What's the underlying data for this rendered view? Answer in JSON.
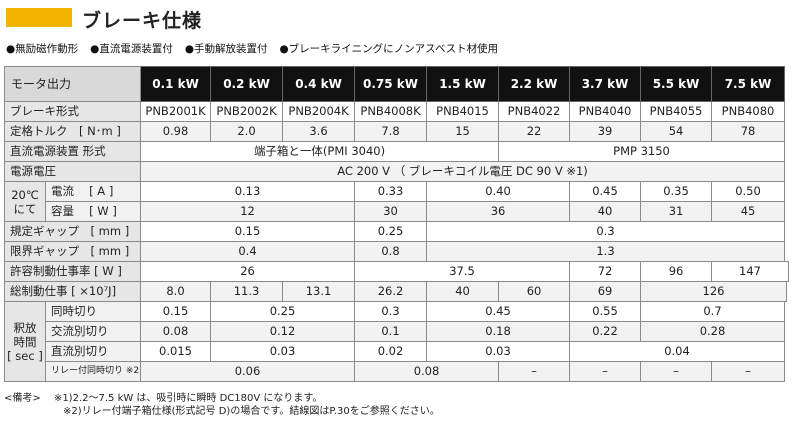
{
  "header": {
    "title": "ブレーキ仕様",
    "accent_color": "#f3b400"
  },
  "features": [
    "●無励磁作動形",
    "●直流電源装置付",
    "●手動解放装置付",
    "●ブレーキライニングにノンアスベスト材使用"
  ],
  "table": {
    "corner_label": "モータ出力",
    "columns": [
      "0.1 kW",
      "0.2 kW",
      "0.4 kW",
      "0.75 kW",
      "1.5 kW",
      "2.2 kW",
      "3.7 kW",
      "5.5 kW",
      "7.5 kW"
    ],
    "brake_type": {
      "label": "ブレーキ形式",
      "values": [
        "PNB2001K",
        "PNB2002K",
        "PNB2004K",
        "PNB4008K",
        "PNB4015",
        "PNB4022",
        "PNB4040",
        "PNB4055",
        "PNB4080"
      ]
    },
    "torque": {
      "label": "定格トルク　[ N･m ]",
      "values": [
        "0.98",
        "2.0",
        "3.6",
        "7.8",
        "15",
        "22",
        "39",
        "54",
        "78"
      ]
    },
    "dc_power": {
      "label": "直流電源装置 形式",
      "v1": "端子箱と一体(PMI 3040)",
      "v2": "PMP 3150"
    },
    "voltage": {
      "label": "電源電圧",
      "value": "AC 200 V （ ブレーキコイル電圧 DC 90 V ※1)"
    },
    "at20": {
      "group_label_1": "20℃",
      "group_label_2": "にて",
      "current": {
        "label": "電流　 [ A ]",
        "v1": "0.13",
        "v2": "0.33",
        "v3": "0.40",
        "v4": "0.45",
        "v5": "0.35",
        "v6": "0.50"
      },
      "capacity": {
        "label": "容量　 [ W ]",
        "v1": "12",
        "v2": "30",
        "v3": "36",
        "v4": "40",
        "v5": "31",
        "v6": "45"
      }
    },
    "gap_std": {
      "label": "規定ギャップ　[ mm ]",
      "v1": "0.15",
      "v2": "0.25",
      "v3": "0.3"
    },
    "gap_lim": {
      "label": "限界ギャップ　[ mm ]",
      "v1": "0.4",
      "v2": "0.8",
      "v3": "1.3"
    },
    "duty_rate": {
      "label": "許容制動仕事率 [ W ]",
      "v1": "26",
      "v2": "37.5",
      "v3": "72",
      "v4": "96",
      "v5": "147"
    },
    "total_work": {
      "label": "総制動仕事 [ ×10⁷J]",
      "v1": "8.0",
      "v2": "11.3",
      "v3": "13.1",
      "v4": "26.2",
      "v5": "40",
      "v6": "60",
      "v7": "69",
      "v8": "126"
    },
    "release": {
      "group_label_1": "釈放",
      "group_label_2": "時間",
      "group_label_3": "[ sec ]",
      "simul": {
        "label": "同時切り",
        "v1": "0.15",
        "v2": "0.25",
        "v3": "0.3",
        "v4": "0.45",
        "v5": "0.55",
        "v6": "0.7"
      },
      "ac_sep": {
        "label": "交流別切り",
        "v1": "0.08",
        "v2": "0.12",
        "v3": "0.1",
        "v4": "0.18",
        "v5": "0.22",
        "v6": "0.28"
      },
      "dc_sep": {
        "label": "直流別切り",
        "v1": "0.015",
        "v2": "0.03",
        "v3": "0.02",
        "v4": "0.03",
        "v5": "0.04"
      },
      "relay": {
        "label": "リレー付同時切り ※2)",
        "v1": "0.06",
        "v2": "0.08",
        "v3": "–",
        "v4": "–",
        "v5": "–",
        "v6": "–"
      }
    }
  },
  "notes": {
    "line1": "<備考>　 ※1)2.2～7.5 kW は、吸引時に瞬時 DC180V になります。",
    "line2": "※2)リレー付端子箱仕様(形式記号 D)の場合です。結線図はP.30をご参照ください。"
  }
}
